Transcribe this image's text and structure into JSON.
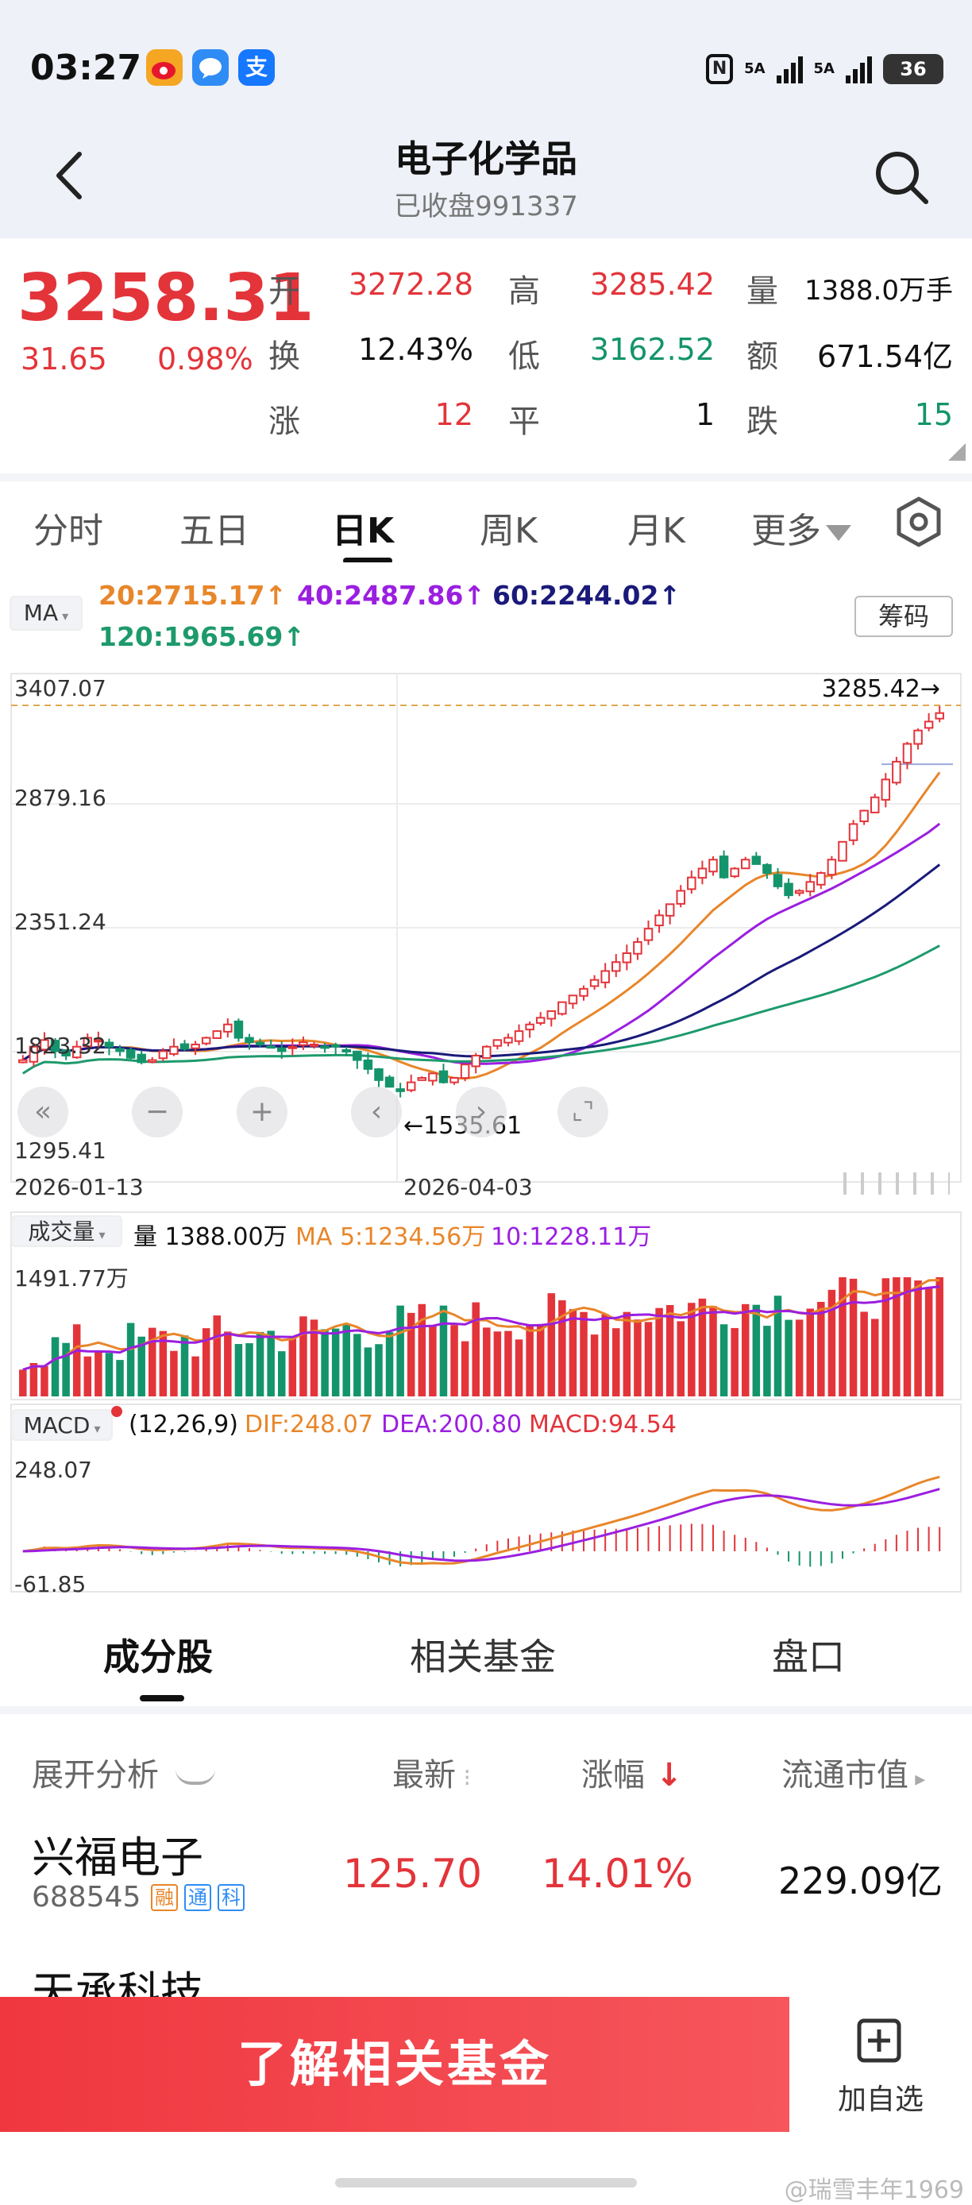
{
  "status_bar": {
    "time": "03:27",
    "sim1_label": "5A",
    "sim2_label": "5A",
    "battery": "36"
  },
  "header": {
    "title": "电子化学品",
    "subtitle": "已收盘991337"
  },
  "quote": {
    "price": "3258.31",
    "change": "31.65",
    "change_pct": "0.98%",
    "open_label": "开",
    "open": "3272.28",
    "high_label": "高",
    "high": "3285.42",
    "volume_label": "量",
    "volume": "1388.0万手",
    "turnover_label": "换",
    "turnover": "12.43%",
    "low_label": "低",
    "low": "3162.52",
    "amount_label": "额",
    "amount": "671.54亿",
    "up_label": "涨",
    "up": "12",
    "flat_label": "平",
    "flat": "1",
    "down_label": "跌",
    "down": "15"
  },
  "period_tabs": {
    "items": [
      "分时",
      "五日",
      "日K",
      "周K",
      "月K",
      "更多"
    ],
    "active": "日K"
  },
  "chart": {
    "ma_selector": "MA",
    "ma20": "20:2715.17↑",
    "ma40": "40:2487.86↑",
    "ma60": "60:2244.02↑",
    "ma120": "120:1965.69↑",
    "chip_button": "筹码",
    "y_top": "3407.07",
    "y_2": "2879.16",
    "y_3": "2351.24",
    "y_4": "1823.32",
    "y_bottom": "1295.41",
    "high_marker": "3285.42→",
    "low_marker": "←1535.61",
    "date_start": "2026-01-13",
    "date_mid": "2026-04-03",
    "volume_selector": "成交量",
    "volume_info": "量 1388.00万",
    "volume_ma5": "MA 5:1234.56万",
    "volume_ma10": "10:1228.11万",
    "volume_max": "1491.77万",
    "macd_selector": "MACD",
    "macd_params": "(12,26,9)",
    "dif": "DIF:248.07",
    "dea": "DEA:200.80",
    "macd_val": "MACD:94.54",
    "macd_top": "248.07",
    "macd_bottom": "-61.85",
    "colors": {
      "up": "#e3343a",
      "down": "#14946b",
      "ma20": "#e8862a",
      "ma40": "#9b1fe0",
      "ma60": "#1a1a7a",
      "ma120": "#1d9a6c"
    }
  },
  "chart_data": {
    "type": "candlestick",
    "x_range": [
      "2026-01-13",
      "2026-05"
    ],
    "y_range": [
      1295.41,
      3407.07
    ],
    "last_close": 3258.31,
    "period_high": 3285.42,
    "period_low": 1535.61,
    "closes_approx": [
      1700,
      1760,
      1790,
      1740,
      1720,
      1760,
      1800,
      1790,
      1760,
      1740,
      1710,
      1690,
      1700,
      1740,
      1760,
      1750,
      1770,
      1800,
      1830,
      1860,
      1800,
      1780,
      1770,
      1760,
      1740,
      1760,
      1780,
      1770,
      1760,
      1760,
      1740,
      1700,
      1660,
      1610,
      1580,
      1560,
      1600,
      1620,
      1640,
      1600,
      1620,
      1680,
      1720,
      1760,
      1790,
      1800,
      1830,
      1860,
      1890,
      1920,
      1960,
      1990,
      2020,
      2060,
      2100,
      2140,
      2180,
      2230,
      2290,
      2350,
      2400,
      2460,
      2520,
      2560,
      2600,
      2520,
      2560,
      2600,
      2580,
      2540,
      2480,
      2440,
      2460,
      2500,
      2540,
      2600,
      2680,
      2760,
      2820,
      2880,
      2960,
      3040,
      3120,
      3180,
      3220,
      3258.31
    ]
  },
  "list_tabs": {
    "items": [
      "成分股",
      "相关基金",
      "盘口"
    ],
    "active": "成分股"
  },
  "list_header": {
    "expand": "展开分析",
    "latest": "最新",
    "change": "涨幅",
    "market_cap": "流通市值"
  },
  "stocks": [
    {
      "name": "兴福电子",
      "code": "688545",
      "tags": [
        "融",
        "通",
        "科"
      ],
      "price": "125.70",
      "change": "14.01%",
      "cap": "229.09亿"
    },
    {
      "name": "天承科技"
    }
  ],
  "bottom_bar": {
    "cta": "了解相关基金",
    "watch": "加自选"
  },
  "watermark": "@瑞雪丰年1969"
}
